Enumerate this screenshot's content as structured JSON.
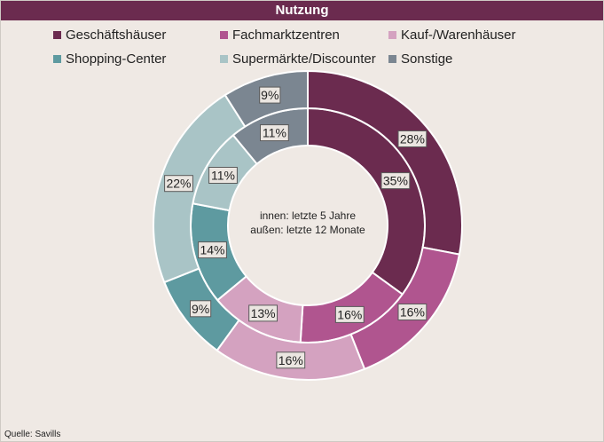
{
  "chart_data": {
    "type": "donut",
    "title": "Nutzung",
    "center_text": [
      "innen: letzte 5 Jahre",
      "außen: letzte 12 Monate"
    ],
    "categories": [
      "Geschäftshäuser",
      "Fachmarktzentren",
      "Kauf-/Warenhäuser",
      "Shopping-Center",
      "Supermärkte/Discounter",
      "Sonstige"
    ],
    "colors": [
      "#6b2b4f",
      "#b0558f",
      "#d4a2c0",
      "#5e9aa0",
      "#a9c4c6",
      "#7b8691"
    ],
    "series": [
      {
        "ring": "inner",
        "values": [
          35,
          16,
          13,
          14,
          11,
          11
        ]
      },
      {
        "ring": "outer",
        "values": [
          28,
          16,
          16,
          9,
          22,
          9
        ]
      }
    ],
    "value_suffix": "%",
    "legend_position": "top"
  },
  "source": "Quelle: Savills"
}
